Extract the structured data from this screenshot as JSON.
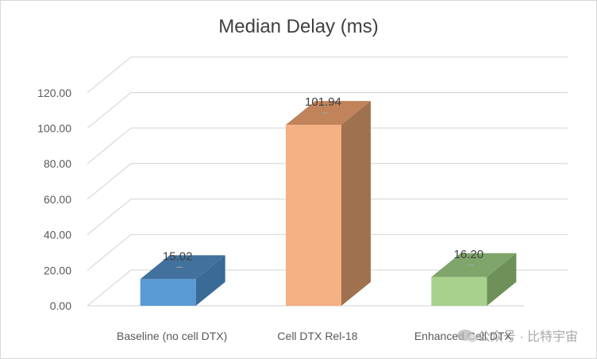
{
  "chart_data": {
    "type": "bar",
    "title": "Median Delay (ms)",
    "categories": [
      "Baseline (no cell DTX)",
      "Cell DTX Rel-18",
      "Enhanced Cell DTX"
    ],
    "values": [
      15.02,
      101.94,
      16.2
    ],
    "value_labels": [
      "15.02",
      "101.94",
      "16.20"
    ],
    "y_ticks": [
      "0.00",
      "20.00",
      "40.00",
      "60.00",
      "80.00",
      "100.00",
      "120.00"
    ],
    "ylim": [
      0,
      120
    ],
    "grid": true,
    "legend": "none",
    "style": "3d-column",
    "bar_colors": [
      {
        "front": "#5b9bd5",
        "top": "#41719c",
        "side": "#3a6a96"
      },
      {
        "front": "#f4b183",
        "top": "#c0835a",
        "side": "#a0714f"
      },
      {
        "front": "#a9d18e",
        "top": "#7fa56a",
        "side": "#6e9159"
      }
    ]
  },
  "watermark": {
    "text": "公众号 · 比特宇宙",
    "icon": "wechat-icon"
  }
}
